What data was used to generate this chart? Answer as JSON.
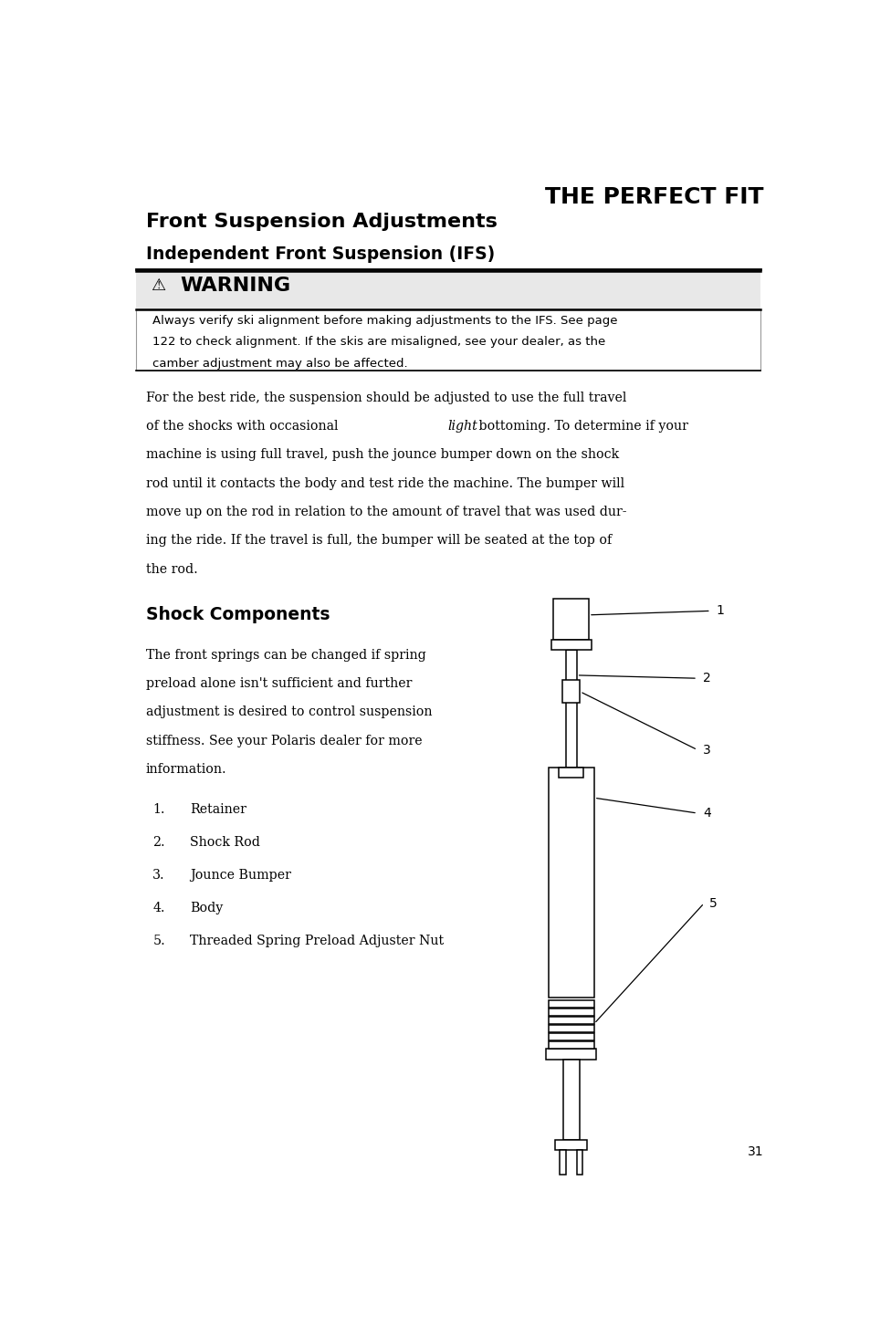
{
  "title_right": "THE PERFECT FIT",
  "heading1": "Front Suspension Adjustments",
  "heading2": "Independent Front Suspension (IFS)",
  "warning_title": "WARNING",
  "warning_text": "Always verify ski alignment before making adjustments to the IFS. See page\n122 to check alignment. If the skis are misaligned, see your dealer, as the\ncamber adjustment may also be affected.",
  "body_line1": "For the best ride, the suspension should be adjusted to use the full travel",
  "body_line2a": "of the shocks with occasional ",
  "body_line2b": "light",
  "body_line2c": " bottoming. To determine if your",
  "body_line3": "machine is using full travel, push the jounce bumper down on the shock",
  "body_line4": "rod until it contacts the body and test ride the machine. The bumper will",
  "body_line5": "move up on the rod in relation to the amount of travel that was used dur-",
  "body_line6": "ing the ride. If the travel is full, the bumper will be seated at the top of",
  "body_line7": "the rod.",
  "section_heading": "Shock Components",
  "section_lines": [
    "The front springs can be changed if spring",
    "preload alone isn't sufficient and further",
    "adjustment is desired to control suspension",
    "stiffness. See your Polaris dealer for more",
    "information."
  ],
  "list_items": [
    "Retainer",
    "Shock Rod",
    "Jounce Bumper",
    "Body",
    "Threaded Spring Preload Adjuster Nut"
  ],
  "page_number": "31",
  "bg_color": "#ffffff",
  "text_color": "#000000"
}
